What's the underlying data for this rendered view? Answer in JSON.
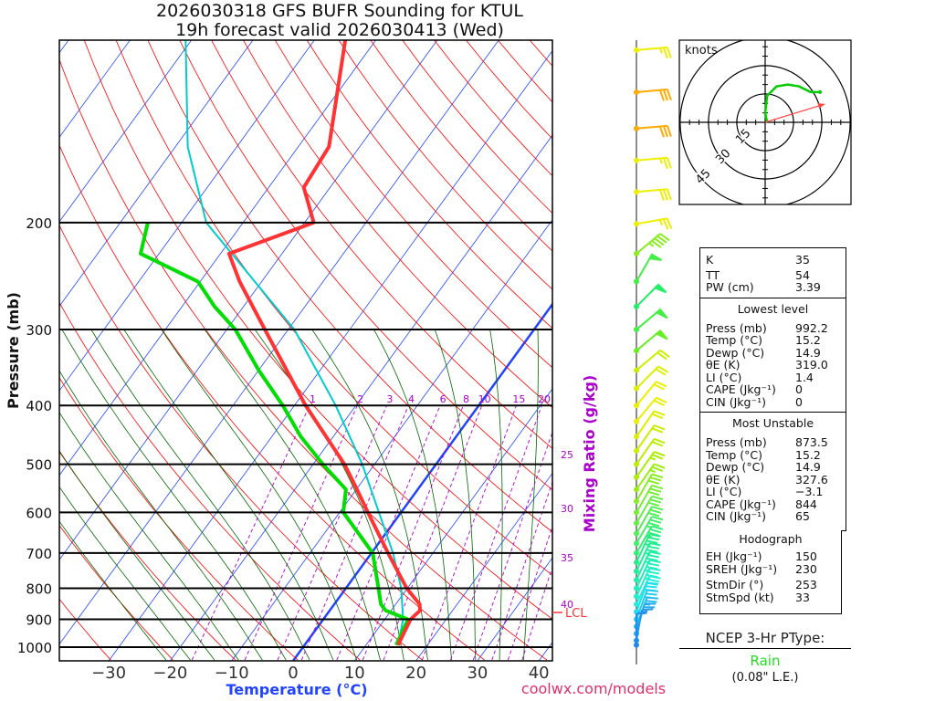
{
  "title": {
    "line1": "2026030318 GFS BUFR Sounding for KTUL",
    "line2": "19h forecast valid 2026030413 (Wed)"
  },
  "colors": {
    "temp": "#ff3333",
    "dewpoint": "#00dd00",
    "parcel": "#00cccc",
    "isotherm": "#2244ff",
    "dry_adiabat": "#ff0000",
    "moist_adiabat": "#006600",
    "mixing_ratio": "#aa00cc"
  },
  "chart_data": {
    "type": "line",
    "title": "2026030318 GFS BUFR Sounding for KTUL",
    "xlabel": "Temperature (°C)",
    "ylabel": "Pressure (mb)",
    "y2label": "Mixing Ratio (g/kg)",
    "x_ticks": [
      "−30",
      "−20",
      "−10",
      "0",
      "10",
      "20",
      "30",
      "40"
    ],
    "x_tick_values": [
      -30,
      -20,
      -10,
      0,
      10,
      20,
      30,
      40
    ],
    "y_ticks": [
      "200",
      "300",
      "400",
      "500",
      "600",
      "700",
      "800",
      "900",
      "1000"
    ],
    "y_tick_values": [
      200,
      300,
      400,
      500,
      600,
      700,
      800,
      900,
      1000
    ],
    "ylim": [
      1050,
      100
    ],
    "mixing_ratio_labels": [
      "1",
      "2",
      "3",
      "4",
      "6",
      "8",
      "10",
      "15",
      "20",
      "25",
      "30",
      "35",
      "40"
    ],
    "mixing_ratio_values": [
      1,
      2,
      3,
      4,
      6,
      8,
      10,
      15,
      20,
      25,
      30,
      35,
      40
    ],
    "lcl_label": "LCL",
    "lcl_pressure": 885,
    "series": [
      {
        "name": "Temperature",
        "pressure": [
          992,
          900,
          870,
          850,
          800,
          700,
          600,
          550,
          500,
          400,
          300,
          250,
          225,
          200,
          175,
          150,
          100
        ],
        "values": [
          15.2,
          14.2,
          14.7,
          13.9,
          9.9,
          2.7,
          -5.4,
          -9.9,
          -14.9,
          -28.2,
          -43.8,
          -53.6,
          -58.6,
          -48.5,
          -54.3,
          -55,
          -65
        ]
      },
      {
        "name": "Dewpoint",
        "pressure": [
          992,
          900,
          870,
          850,
          800,
          700,
          600,
          550,
          500,
          450,
          400,
          350,
          300,
          275,
          250,
          225,
          200
        ],
        "values": [
          14.9,
          13.8,
          9.1,
          7.6,
          5.3,
          0.2,
          -9.4,
          -11.7,
          -18.4,
          -25.3,
          -31.9,
          -40,
          -48.6,
          -54.7,
          -60.4,
          -73,
          -75.5
        ]
      },
      {
        "name": "Parcel",
        "pressure": [
          992,
          900,
          800,
          700,
          600,
          500,
          400,
          300,
          200,
          150,
          100
        ],
        "values": [
          15.2,
          13,
          9,
          3.5,
          -3.6,
          -12,
          -23.3,
          -39,
          -66,
          -78,
          -91
        ]
      }
    ],
    "winds": [
      {
        "p": 104,
        "dir": 265,
        "kt": 25,
        "color": "#eeee00"
      },
      {
        "p": 122,
        "dir": 265,
        "kt": 30,
        "color": "#ffaa00"
      },
      {
        "p": 140,
        "dir": 265,
        "kt": 30,
        "color": "#ffaa00"
      },
      {
        "p": 158,
        "dir": 265,
        "kt": 25,
        "color": "#eeee00"
      },
      {
        "p": 178,
        "dir": 265,
        "kt": 30,
        "color": "#eeee00"
      },
      {
        "p": 201,
        "dir": 260,
        "kt": 25,
        "color": "#eeee00"
      },
      {
        "p": 225,
        "dir": 230,
        "kt": 45,
        "color": "#88ee22"
      },
      {
        "p": 250,
        "dir": 210,
        "kt": 50,
        "color": "#44ee44"
      },
      {
        "p": 275,
        "dir": 225,
        "kt": 50,
        "color": "#22ee66"
      },
      {
        "p": 300,
        "dir": 230,
        "kt": 50,
        "color": "#44ee44"
      },
      {
        "p": 325,
        "dir": 230,
        "kt": 50,
        "color": "#66ee22"
      },
      {
        "p": 350,
        "dir": 230,
        "kt": 20,
        "color": "#ccee00"
      },
      {
        "p": 375,
        "dir": 225,
        "kt": 20,
        "color": "#ddee00"
      },
      {
        "p": 400,
        "dir": 220,
        "kt": 20,
        "color": "#eeee00"
      },
      {
        "p": 425,
        "dir": 220,
        "kt": 20,
        "color": "#eeee00"
      },
      {
        "p": 450,
        "dir": 215,
        "kt": 20,
        "color": "#ddee00"
      },
      {
        "p": 475,
        "dir": 215,
        "kt": 20,
        "color": "#ccee00"
      },
      {
        "p": 500,
        "dir": 215,
        "kt": 20,
        "color": "#bbee00"
      },
      {
        "p": 525,
        "dir": 215,
        "kt": 25,
        "color": "#aaee00"
      },
      {
        "p": 550,
        "dir": 215,
        "kt": 25,
        "color": "#99ee11"
      },
      {
        "p": 575,
        "dir": 210,
        "kt": 30,
        "color": "#88ee22"
      },
      {
        "p": 600,
        "dir": 210,
        "kt": 30,
        "color": "#77ee33"
      },
      {
        "p": 625,
        "dir": 210,
        "kt": 30,
        "color": "#66ee44"
      },
      {
        "p": 650,
        "dir": 210,
        "kt": 30,
        "color": "#55ee55"
      },
      {
        "p": 675,
        "dir": 210,
        "kt": 35,
        "color": "#44ee66"
      },
      {
        "p": 700,
        "dir": 210,
        "kt": 35,
        "color": "#33ee77"
      },
      {
        "p": 725,
        "dir": 205,
        "kt": 35,
        "color": "#22ee88"
      },
      {
        "p": 750,
        "dir": 205,
        "kt": 35,
        "color": "#22ee99"
      },
      {
        "p": 775,
        "dir": 205,
        "kt": 35,
        "color": "#22eeaa"
      },
      {
        "p": 800,
        "dir": 205,
        "kt": 35,
        "color": "#22eebb"
      },
      {
        "p": 825,
        "dir": 205,
        "kt": 35,
        "color": "#22eecc"
      },
      {
        "p": 850,
        "dir": 205,
        "kt": 30,
        "color": "#22eedd"
      },
      {
        "p": 875,
        "dir": 200,
        "kt": 30,
        "color": "#22ddee"
      },
      {
        "p": 900,
        "dir": 200,
        "kt": 25,
        "color": "#22ccee"
      },
      {
        "p": 925,
        "dir": 200,
        "kt": 25,
        "color": "#22bbee"
      },
      {
        "p": 950,
        "dir": 195,
        "kt": 20,
        "color": "#22aaee"
      },
      {
        "p": 975,
        "dir": 190,
        "kt": 15,
        "color": "#2299ee"
      },
      {
        "p": 992,
        "dir": 180,
        "kt": 10,
        "color": "#2288ee"
      }
    ],
    "hodograph": {
      "units_label": "knots",
      "ring_labels": [
        "15",
        "30",
        "45"
      ],
      "ring_values": [
        15,
        30,
        45
      ],
      "u": [
        1,
        0,
        1,
        6,
        12,
        18,
        24,
        29
      ],
      "v": [
        0,
        5,
        14,
        19,
        20,
        19,
        16,
        16
      ],
      "storm_motion": {
        "dir": 253,
        "kt": 33
      }
    }
  },
  "indices": {
    "k": {
      "label": "K",
      "value": "35"
    },
    "tt": {
      "label": "TT",
      "value": "54"
    },
    "pw": {
      "label": "PW (cm)",
      "value": "3.39"
    }
  },
  "lowest": {
    "header": "Lowest level",
    "rows": [
      {
        "label": "Press (mb)",
        "value": "992.2"
      },
      {
        "label": "Temp (°C)",
        "value": "15.2"
      },
      {
        "label": "Dewp (°C)",
        "value": "14.9"
      },
      {
        "label": "θE (K)",
        "value": "319.0"
      },
      {
        "label": "LI (°C)",
        "value": "1.4"
      },
      {
        "label": "CAPE (Jkg⁻¹)",
        "value": "0"
      },
      {
        "label": "CIN (Jkg⁻¹)",
        "value": "0"
      }
    ]
  },
  "most_unstable": {
    "header": "Most Unstable",
    "rows": [
      {
        "label": "Press (mb)",
        "value": "873.5"
      },
      {
        "label": "Temp (°C)",
        "value": "15.2"
      },
      {
        "label": "Dewp (°C)",
        "value": "14.9"
      },
      {
        "label": "θE (K)",
        "value": "327.6"
      },
      {
        "label": "LI (°C)",
        "value": "−3.1"
      },
      {
        "label": "CAPE (Jkg⁻¹)",
        "value": "844"
      },
      {
        "label": "CIN (Jkg⁻¹)",
        "value": "65"
      }
    ]
  },
  "hodo_stats": {
    "header": "Hodograph",
    "rows": [
      {
        "label": "EH (Jkg⁻¹)",
        "value": "150"
      },
      {
        "label": "SREH (Jkg⁻¹)",
        "value": "230"
      },
      {
        "label": "StmDir (°)",
        "value": "253"
      },
      {
        "label": "StmSpd (kt)",
        "value": "33"
      }
    ]
  },
  "ptype": {
    "header": "NCEP 3-Hr PType:",
    "value": "Rain",
    "amount": "(0.08\" L.E.)"
  },
  "footer": {
    "credit": "coolwx.com/models"
  }
}
